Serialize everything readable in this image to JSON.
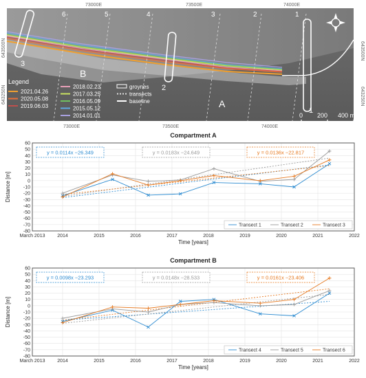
{
  "map": {
    "top_ticks": [
      "73000E",
      "73500E",
      "74000E"
    ],
    "bottom_ticks": [
      "73000E",
      "73500E",
      "74000E"
    ],
    "left_ticks": [
      "643500N",
      "643250N"
    ],
    "right_ticks": [
      "643500N",
      "643250N"
    ],
    "transect_numbers": [
      "1",
      "2",
      "3",
      "4",
      "5",
      "6"
    ],
    "groyne_labels": [
      "1",
      "2",
      "3"
    ],
    "compartment_labels": [
      "A",
      "B"
    ],
    "scale_labels": [
      "0",
      "200",
      "400 m"
    ],
    "legend_title": "Legend",
    "legend_items": [
      {
        "label": "2021.04.26",
        "color": "#f0a030",
        "kind": "line"
      },
      {
        "label": "2020.05.08",
        "color": "#e8703a",
        "kind": "line"
      },
      {
        "label": "2019.06.03",
        "color": "#c0504d",
        "kind": "line"
      },
      {
        "label": "2018.02.23",
        "color": "#e8a0b8",
        "kind": "line"
      },
      {
        "label": "2017.03.25",
        "color": "#c8e060",
        "kind": "line"
      },
      {
        "label": "2016.05.09",
        "color": "#70c060",
        "kind": "line"
      },
      {
        "label": "2015.05.12",
        "color": "#60a8e0",
        "kind": "line"
      },
      {
        "label": "2014.01.01",
        "color": "#a8a0e0",
        "kind": "line"
      },
      {
        "label": "groynes",
        "color": "#ffffff",
        "kind": "box"
      },
      {
        "label": "transects",
        "color": "#dddddd",
        "kind": "dashed"
      },
      {
        "label": "baseline",
        "color": "#ffffff",
        "kind": "line"
      }
    ]
  },
  "chart_data": [
    {
      "type": "line",
      "title": "Compartment A",
      "xlabel": "Time [years]",
      "ylabel": "Distance [m]",
      "xlim": [
        2013.17,
        2022.0
      ],
      "ylim": [
        -80,
        60
      ],
      "x_ticks": [
        2013.17,
        2014,
        2015,
        2016,
        2017,
        2018,
        2019,
        2020,
        2021,
        2022
      ],
      "x_tick_labels": [
        "March 2013",
        "2014",
        "2015",
        "2016",
        "2017",
        "2018",
        "2019",
        "2020",
        "2021",
        "2022"
      ],
      "y_ticks": [
        -80,
        -70,
        -60,
        -50,
        -40,
        -30,
        -20,
        -10,
        0,
        10,
        20,
        30,
        40,
        50,
        60
      ],
      "grid": true,
      "legend_position": "bottom-right",
      "x": [
        2014.0,
        2015.37,
        2016.35,
        2017.23,
        2018.15,
        2019.42,
        2020.35,
        2021.32
      ],
      "series": [
        {
          "name": "Transect 1",
          "color": "#2a8ad0",
          "marker": "x",
          "values": [
            -24,
            2,
            -23,
            -21,
            -3,
            -5,
            -10,
            27
          ],
          "trend": {
            "label": "y = 0.0114x −26.349",
            "from": -27,
            "to": 25
          }
        },
        {
          "name": "Transect 2",
          "color": "#999999",
          "marker": "+",
          "values": [
            -20,
            9,
            -1,
            1,
            19,
            -1,
            2,
            47
          ],
          "trend": {
            "label": "y = 0.0183x −24.649",
            "from": -25,
            "to": 36
          }
        },
        {
          "name": "Transect 3",
          "color": "#e6781e",
          "marker": "+",
          "values": [
            -26,
            11,
            -7,
            0,
            8,
            0,
            7,
            33
          ],
          "trend": {
            "label": "y = 0.0136x −22.817",
            "from": -22,
            "to": 24
          }
        }
      ]
    },
    {
      "type": "line",
      "title": "Compartment B",
      "xlabel": "Time [years]",
      "ylabel": "Distance [m]",
      "xlim": [
        2013.17,
        2022.0
      ],
      "ylim": [
        -80,
        60
      ],
      "x_ticks": [
        2013.17,
        2014,
        2015,
        2016,
        2017,
        2018,
        2019,
        2020,
        2021,
        2022
      ],
      "x_tick_labels": [
        "March 2013",
        "2014",
        "2015",
        "2016",
        "2017",
        "2018",
        "2019",
        "2020",
        "2021",
        "2022"
      ],
      "y_ticks": [
        -80,
        -70,
        -60,
        -50,
        -40,
        -30,
        -20,
        -10,
        0,
        10,
        20,
        30,
        40,
        50,
        60
      ],
      "grid": true,
      "legend_position": "bottom-right",
      "x": [
        2014.0,
        2015.37,
        2016.35,
        2017.23,
        2018.15,
        2019.42,
        2020.35,
        2021.32
      ],
      "series": [
        {
          "name": "Transect 4",
          "color": "#2a8ad0",
          "marker": "x",
          "values": [
            -25,
            -7,
            -34,
            7,
            10,
            -13,
            -16,
            20
          ],
          "trend": {
            "label": "y = 0.0098x −23.293",
            "from": -23,
            "to": 7
          }
        },
        {
          "name": "Transect 5",
          "color": "#999999",
          "marker": "+",
          "values": [
            -20,
            -5,
            -10,
            2,
            5,
            0,
            2,
            24
          ],
          "trend": {
            "label": "y = 0.0148x −28.533",
            "from": -28,
            "to": 18
          }
        },
        {
          "name": "Transect 6",
          "color": "#e6781e",
          "marker": "+",
          "values": [
            -27,
            -2,
            -4,
            2,
            8,
            4,
            10,
            44
          ],
          "trend": {
            "label": "y = 0.0161x −23.406",
            "from": -23,
            "to": 27
          }
        }
      ]
    }
  ]
}
